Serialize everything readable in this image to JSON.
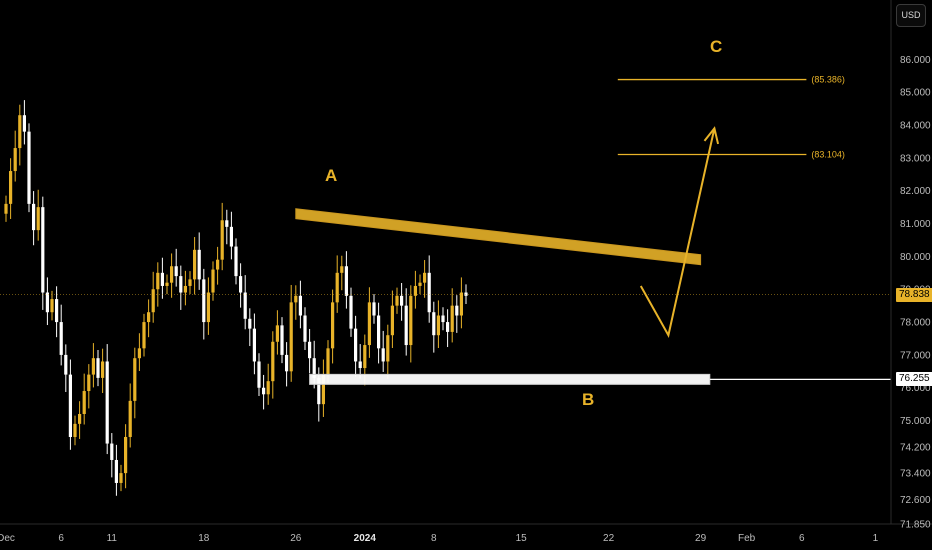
{
  "currency": "USD",
  "price_badge": "78.838",
  "support_badge": "76.255",
  "annotations": {
    "a": "A",
    "b": "B",
    "c": "C"
  },
  "target_labels": {
    "t1": "(85.386)",
    "t2": "(83.104)"
  },
  "colors": {
    "up": "#e8b329",
    "down": "#ffffff",
    "resistance": "#e8b329",
    "support": "#ffffff",
    "background": "#000000"
  },
  "chart_data": {
    "type": "candlestick",
    "title": "",
    "xlabel": "",
    "ylabel": "",
    "ylim": [
      71.85,
      87.2
    ],
    "grid": false,
    "price_axis": [
      "86.000",
      "85.000",
      "84.000",
      "83.000",
      "82.000",
      "81.000",
      "80.000",
      "79.000",
      "78.000",
      "77.000",
      "76.000",
      "75.000",
      "74.200",
      "73.400",
      "72.600",
      "71.850"
    ],
    "time_axis": [
      {
        "label": "Dec",
        "bar": 0
      },
      {
        "label": "6",
        "bar": 12
      },
      {
        "label": "11",
        "bar": 23
      },
      {
        "label": "18",
        "bar": 43
      },
      {
        "label": "26",
        "bar": 63
      },
      {
        "label": "2024",
        "bar": 78,
        "bold": true
      },
      {
        "label": "8",
        "bar": 93
      },
      {
        "label": "15",
        "bar": 112
      },
      {
        "label": "22",
        "bar": 131
      },
      {
        "label": "29",
        "bar": 151
      },
      {
        "label": "Feb",
        "bar": 161
      },
      {
        "label": "6",
        "bar": 173
      },
      {
        "label": "1",
        "bar": 189
      }
    ],
    "closes": [
      81.6,
      82.6,
      83.3,
      84.3,
      83.8,
      81.6,
      80.8,
      81.5,
      78.9,
      78.3,
      78.7,
      78.0,
      77.0,
      76.4,
      74.5,
      74.9,
      75.2,
      75.9,
      76.4,
      76.9,
      76.3,
      76.8,
      74.3,
      73.8,
      73.1,
      73.4,
      74.5,
      75.6,
      76.9,
      77.2,
      78.0,
      78.3,
      79.0,
      79.5,
      79.1,
      79.2,
      79.7,
      79.4,
      78.9,
      79.1,
      79.3,
      80.2,
      79.3,
      78.0,
      78.9,
      79.6,
      79.9,
      81.1,
      80.9,
      80.3,
      79.4,
      78.9,
      78.1,
      77.8,
      76.8,
      76.0,
      75.8,
      76.2,
      77.4,
      77.9,
      77.0,
      76.5,
      78.6,
      78.8,
      78.2,
      77.4,
      76.9,
      76.3,
      75.5,
      76.4,
      77.2,
      78.6,
      79.5,
      79.7,
      78.8,
      77.8,
      76.8,
      76.6,
      77.3,
      78.6,
      78.2,
      77.2,
      76.8,
      77.6,
      78.5,
      78.8,
      78.5,
      77.3,
      78.8,
      79.1,
      79.2,
      79.5,
      78.3,
      77.6,
      78.2,
      78.0,
      77.7,
      78.5,
      78.2,
      78.9,
      78.8
    ],
    "support_level": 76.255,
    "resistance_trendline": {
      "start": {
        "bar": 63,
        "price": 81.3
      },
      "end": {
        "bar": 151,
        "price": 79.9
      }
    },
    "targets": [
      85.386,
      83.104
    ],
    "projection": [
      {
        "bar": 138,
        "price": 79.1
      },
      {
        "bar": 144,
        "price": 77.6
      },
      {
        "bar": 154,
        "price": 83.9
      }
    ],
    "last_price": 78.838
  }
}
